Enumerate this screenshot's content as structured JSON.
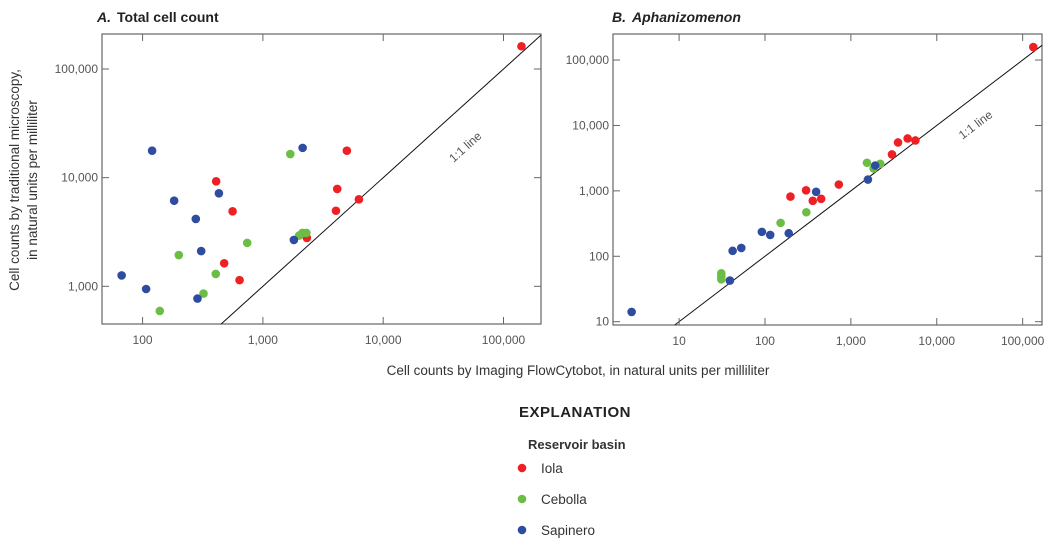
{
  "chart_data": [
    {
      "type": "scatter",
      "title": "A. Total cell count",
      "title_letter": "A.",
      "title_text": "Total cell count",
      "xscale": "log",
      "yscale": "log",
      "xlim": [
        46,
        205000
      ],
      "ylim": [
        450,
        210000
      ],
      "xticks": [
        100,
        1000,
        10000,
        100000
      ],
      "xtick_labels": [
        "100",
        "1,000",
        "10,000",
        "100,000"
      ],
      "yticks": [
        1000,
        10000,
        100000
      ],
      "ytick_labels": [
        "1,000",
        "10,000",
        "100,000"
      ],
      "reference_line": {
        "label": "1:1 line"
      },
      "grid": false,
      "series": [
        {
          "name": "Iola",
          "color": "#ee2024",
          "points": [
            [
              141000,
              162000
            ],
            [
              4990,
              17700
            ],
            [
              409,
              9250
            ],
            [
              4150,
              7870
            ],
            [
              6280,
              6320
            ],
            [
              560,
              4900
            ],
            [
              4050,
              4960
            ],
            [
              2320,
              2790
            ],
            [
              477,
              1630
            ],
            [
              640,
              1140
            ]
          ]
        },
        {
          "name": "Cebolla",
          "color": "#6cbd45",
          "points": [
            [
              1690,
              16500
            ],
            [
              2000,
              2930
            ],
            [
              2130,
              3100
            ],
            [
              2300,
              3100
            ],
            [
              741,
              2510
            ],
            [
              200,
              1940
            ],
            [
              406,
              1300
            ],
            [
              321,
              857
            ],
            [
              139,
              593
            ]
          ]
        },
        {
          "name": "Sapinero",
          "color": "#2e4da0",
          "points": [
            [
              120,
              17700
            ],
            [
              2140,
              18800
            ],
            [
              431,
              7180
            ],
            [
              183,
              6140
            ],
            [
              277,
              4170
            ],
            [
              307,
              2110
            ],
            [
              1810,
              2670
            ],
            [
              67,
              1260
            ],
            [
              107,
              945
            ],
            [
              286,
              771
            ]
          ]
        }
      ]
    },
    {
      "type": "scatter",
      "title": "B. Aphanizomenon",
      "title_letter": "B.",
      "title_text": "Aphanizomenon",
      "xscale": "log",
      "yscale": "log",
      "xlim": [
        1.7,
        168000
      ],
      "ylim": [
        8.9,
        250000
      ],
      "xticks": [
        10,
        100,
        1000,
        10000,
        100000
      ],
      "xtick_labels": [
        "10",
        "100",
        "1,000",
        "10,000",
        "100,000"
      ],
      "yticks": [
        10,
        100,
        1000,
        10000,
        100000
      ],
      "ytick_labels": [
        "10",
        "100",
        "1,000",
        "10,000",
        "100,000"
      ],
      "reference_line": {
        "label": "1:1 line"
      },
      "grid": false,
      "series": [
        {
          "name": "Iola",
          "color": "#ee2024",
          "points": [
            [
              133000,
              158000
            ],
            [
              5640,
              5890
            ],
            [
              4580,
              6320
            ],
            [
              3540,
              5490
            ],
            [
              3010,
              3600
            ],
            [
              724,
              1250
            ],
            [
              301,
              1020
            ],
            [
              451,
              755
            ],
            [
              360,
              704
            ],
            [
              198,
              818
            ]
          ]
        },
        {
          "name": "Cebolla",
          "color": "#6cbd45",
          "points": [
            [
              1540,
              2690
            ],
            [
              2200,
              2590
            ],
            [
              1840,
              2200
            ],
            [
              303,
              471
            ],
            [
              152,
              324
            ],
            [
              31,
              55
            ],
            [
              31,
              49
            ],
            [
              31,
              44.5
            ]
          ]
        },
        {
          "name": "Sapinero",
          "color": "#2e4da0",
          "points": [
            [
              1920,
              2440
            ],
            [
              1580,
              1490
            ],
            [
              394,
              966
            ],
            [
              189,
              225
            ],
            [
              92,
              236
            ],
            [
              115,
              212
            ],
            [
              53,
              134
            ],
            [
              42,
              121
            ],
            [
              39,
              42.5
            ],
            [
              2.8,
              14.1
            ]
          ]
        }
      ]
    }
  ],
  "axes": {
    "xlabel": "Cell counts by Imaging FlowCytobot, in natural units per milliliter",
    "ylabel_line1": "Cell counts by traditional microscopy,",
    "ylabel_line2": "in natural units per milliliter"
  },
  "legend": {
    "heading": "EXPLANATION",
    "subheading": "Reservoir basin",
    "placement": "bottom-center",
    "items": [
      {
        "label": "Iola",
        "color": "#ee2024"
      },
      {
        "label": "Cebolla",
        "color": "#6cbd45"
      },
      {
        "label": "Sapinero",
        "color": "#2e4da0"
      }
    ]
  }
}
